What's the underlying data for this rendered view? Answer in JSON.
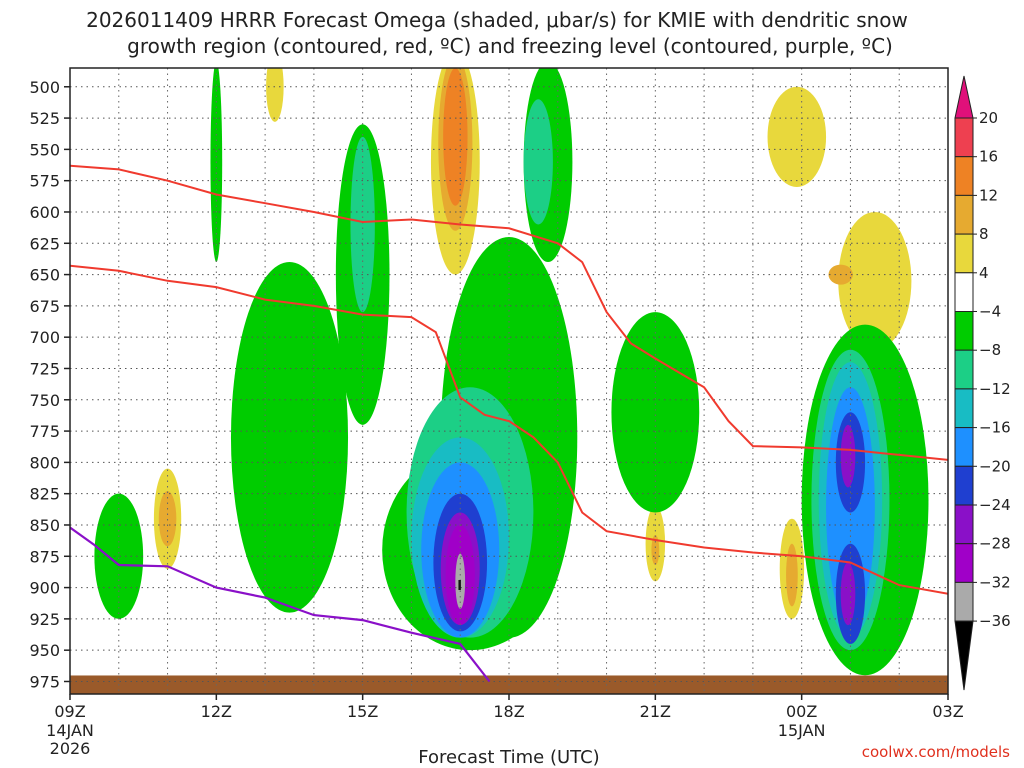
{
  "chart_data": {
    "type": "time-height",
    "title_line1": "2026011409 HRRR Forecast Omega (shaded, μbar/s) for KMIE with dendritic snow",
    "title_line2": "growth region (contoured, red, ºC) and freezing level (contoured, purple, ºC)",
    "xlabel": "Forecast Time (UTC)",
    "credit": "coolwx.com/models",
    "y_axis": {
      "unit": "hPa",
      "ticks": [
        500,
        525,
        550,
        575,
        600,
        625,
        650,
        675,
        700,
        725,
        750,
        775,
        800,
        825,
        850,
        875,
        900,
        925,
        950,
        975
      ],
      "range": [
        485,
        985
      ]
    },
    "x_axis": {
      "unit": "hours since 09Z 14JAN",
      "range": [
        0,
        18
      ],
      "ticks": [
        {
          "h": 0,
          "label": "09Z",
          "sub1": "14JAN",
          "sub2": "2026"
        },
        {
          "h": 3,
          "label": "12Z",
          "sub1": "",
          "sub2": ""
        },
        {
          "h": 6,
          "label": "15Z",
          "sub1": "",
          "sub2": ""
        },
        {
          "h": 9,
          "label": "18Z",
          "sub1": "",
          "sub2": ""
        },
        {
          "h": 12,
          "label": "21Z",
          "sub1": "",
          "sub2": ""
        },
        {
          "h": 15,
          "label": "00Z",
          "sub1": "15JAN",
          "sub2": ""
        },
        {
          "h": 18,
          "label": "03Z",
          "sub1": "",
          "sub2": ""
        }
      ]
    },
    "colorbar": {
      "labels": [
        "20",
        "16",
        "12",
        "8",
        "4",
        "−4",
        "−8",
        "−12",
        "−16",
        "−20",
        "−24",
        "−28",
        "−32",
        "−36"
      ],
      "bounds": [
        20,
        16,
        12,
        8,
        4,
        -4,
        -8,
        -12,
        -16,
        -20,
        -24,
        -28,
        -32,
        -36
      ],
      "colors": [
        "#ee4050",
        "#ee8224",
        "#e6aa30",
        "#e8d83c",
        "#ffffff",
        "#00cc00",
        "#1ccf86",
        "#18bcc4",
        "#1e90ff",
        "#1f3fd0",
        "#8a10c8",
        "#a000c8",
        "#aaaaaa"
      ],
      "top_color": "#e0107a",
      "bottom_color": "#000000"
    },
    "omega_contours_ubar_s": [
      {
        "level": 4,
        "blobs": [
          {
            "ch": 4.2,
            "cp": 500,
            "wh": 0.18,
            "wp": 28
          },
          {
            "ch": 7.9,
            "cp": 560,
            "wh": 0.5,
            "wp": 90
          },
          {
            "ch": 14.9,
            "cp": 540,
            "wh": 0.6,
            "wp": 40
          },
          {
            "ch": 16.5,
            "cp": 655,
            "wh": 0.75,
            "wp": 55
          },
          {
            "ch": 2.0,
            "cp": 845,
            "wh": 0.28,
            "wp": 40
          },
          {
            "ch": 5.0,
            "cp": 825,
            "wh": 0.25,
            "wp": 40
          },
          {
            "ch": 12.0,
            "cp": 865,
            "wh": 0.2,
            "wp": 30
          },
          {
            "ch": 14.8,
            "cp": 885,
            "wh": 0.25,
            "wp": 40
          }
        ]
      },
      {
        "level": 8,
        "blobs": [
          {
            "ch": 7.9,
            "cp": 545,
            "wh": 0.35,
            "wp": 70
          },
          {
            "ch": 2.0,
            "cp": 845,
            "wh": 0.18,
            "wp": 22
          },
          {
            "ch": 5.0,
            "cp": 825,
            "wh": 0.1,
            "wp": 20
          },
          {
            "ch": 15.8,
            "cp": 650,
            "wh": 0.25,
            "wp": 8
          },
          {
            "ch": 14.8,
            "cp": 890,
            "wh": 0.12,
            "wp": 25
          },
          {
            "ch": 12.0,
            "cp": 870,
            "wh": 0.08,
            "wp": 12
          }
        ]
      },
      {
        "level": 12,
        "blobs": [
          {
            "ch": 7.9,
            "cp": 540,
            "wh": 0.25,
            "wp": 55
          }
        ]
      },
      {
        "level": -4,
        "blobs": [
          {
            "ch": 6.0,
            "cp": 650,
            "wh": 0.55,
            "wp": 120
          },
          {
            "ch": 9.8,
            "cp": 560,
            "wh": 0.5,
            "wp": 80
          },
          {
            "ch": 9.0,
            "cp": 780,
            "wh": 1.4,
            "wp": 160
          },
          {
            "ch": 8.2,
            "cp": 870,
            "wh": 1.8,
            "wp": 80
          },
          {
            "ch": 3.0,
            "cp": 560,
            "wh": 0.12,
            "wp": 80
          },
          {
            "ch": 4.5,
            "cp": 780,
            "wh": 1.2,
            "wp": 140
          },
          {
            "ch": 12.0,
            "cp": 760,
            "wh": 0.9,
            "wp": 80
          },
          {
            "ch": 16.3,
            "cp": 830,
            "wh": 1.3,
            "wp": 140
          },
          {
            "ch": 1.0,
            "cp": 875,
            "wh": 0.5,
            "wp": 50
          }
        ]
      },
      {
        "level": -8,
        "blobs": [
          {
            "ch": 6.0,
            "cp": 610,
            "wh": 0.25,
            "wp": 70
          },
          {
            "ch": 9.6,
            "cp": 560,
            "wh": 0.3,
            "wp": 50
          },
          {
            "ch": 8.2,
            "cp": 840,
            "wh": 1.3,
            "wp": 100
          },
          {
            "ch": 16.0,
            "cp": 830,
            "wh": 0.8,
            "wp": 120
          }
        ]
      },
      {
        "level": -12,
        "blobs": [
          {
            "ch": 8.0,
            "cp": 860,
            "wh": 1.0,
            "wp": 80
          },
          {
            "ch": 16.0,
            "cp": 830,
            "wh": 0.65,
            "wp": 110
          }
        ]
      },
      {
        "level": -16,
        "blobs": [
          {
            "ch": 8.0,
            "cp": 870,
            "wh": 0.8,
            "wp": 70
          },
          {
            "ch": 16.0,
            "cp": 835,
            "wh": 0.5,
            "wp": 95
          }
        ]
      },
      {
        "level": -20,
        "blobs": [
          {
            "ch": 8.0,
            "cp": 880,
            "wh": 0.55,
            "wp": 55
          },
          {
            "ch": 16.0,
            "cp": 800,
            "wh": 0.3,
            "wp": 40
          },
          {
            "ch": 16.0,
            "cp": 905,
            "wh": 0.3,
            "wp": 40
          }
        ]
      },
      {
        "level": -24,
        "blobs": [
          {
            "ch": 8.0,
            "cp": 885,
            "wh": 0.4,
            "wp": 45
          },
          {
            "ch": 15.95,
            "cp": 795,
            "wh": 0.15,
            "wp": 25
          },
          {
            "ch": 15.95,
            "cp": 905,
            "wh": 0.15,
            "wp": 25
          }
        ]
      },
      {
        "level": -28,
        "blobs": [
          {
            "ch": 8.0,
            "cp": 890,
            "wh": 0.3,
            "wp": 40
          }
        ]
      },
      {
        "level": -32,
        "blobs": [
          {
            "ch": 8.0,
            "cp": 895,
            "wh": 0.1,
            "wp": 22
          }
        ]
      }
    ],
    "dgz_contours_red": [
      {
        "name": "upper",
        "points": [
          [
            0,
            563
          ],
          [
            1,
            566
          ],
          [
            2,
            575
          ],
          [
            3,
            586
          ],
          [
            4,
            593
          ],
          [
            5,
            600
          ],
          [
            6,
            608
          ],
          [
            7,
            606
          ],
          [
            8,
            610
          ],
          [
            9,
            613
          ],
          [
            10,
            625
          ],
          [
            10.5,
            640
          ],
          [
            11,
            680
          ],
          [
            11.5,
            705
          ],
          [
            12,
            717
          ],
          [
            13,
            740
          ],
          [
            13.5,
            767
          ],
          [
            14,
            787
          ],
          [
            15,
            788
          ],
          [
            16,
            790
          ],
          [
            17,
            794
          ],
          [
            18,
            798
          ]
        ]
      },
      {
        "name": "lower",
        "points": [
          [
            0,
            643
          ],
          [
            1,
            647
          ],
          [
            2,
            655
          ],
          [
            3,
            660
          ],
          [
            4,
            670
          ],
          [
            5,
            675
          ],
          [
            6,
            682
          ],
          [
            7,
            684
          ],
          [
            7.5,
            696
          ],
          [
            8,
            748
          ],
          [
            8.5,
            762
          ],
          [
            9,
            767
          ],
          [
            9.5,
            780
          ],
          [
            10,
            800
          ],
          [
            10.5,
            840
          ],
          [
            11,
            855
          ],
          [
            12,
            862
          ],
          [
            13,
            868
          ],
          [
            14,
            872
          ],
          [
            15,
            875
          ],
          [
            16,
            880
          ],
          [
            17,
            898
          ],
          [
            18,
            905
          ]
        ]
      }
    ],
    "freezing_level_purple": [
      [
        0,
        852
      ],
      [
        0.5,
        866
      ],
      [
        1,
        882
      ],
      [
        2,
        883
      ],
      [
        3,
        900
      ],
      [
        4,
        908
      ],
      [
        5,
        922
      ],
      [
        6,
        926
      ],
      [
        7,
        936
      ],
      [
        8,
        945
      ],
      [
        8.6,
        975
      ]
    ],
    "ground_hpa": 975
  }
}
